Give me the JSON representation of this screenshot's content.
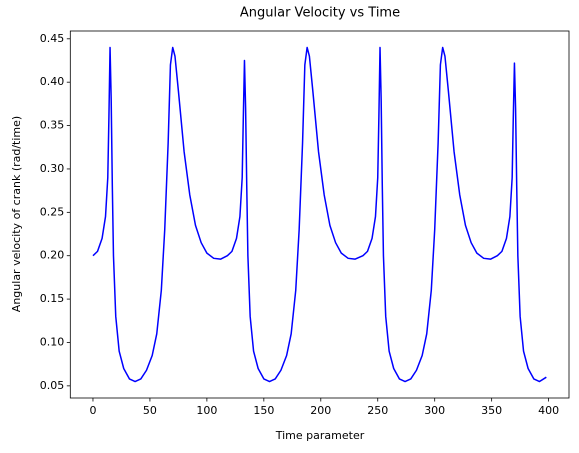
{
  "chart_data": {
    "type": "line",
    "title": "Angular Velocity vs Time",
    "x_label": "Time parameter",
    "y_label": "Angular velocity of crank (rad/time)",
    "x": [
      0,
      4,
      8,
      11,
      13,
      14,
      15,
      16,
      17,
      18,
      20,
      23,
      27,
      32,
      37,
      42,
      47,
      52,
      56,
      60,
      63,
      66,
      68,
      70,
      72,
      75,
      80,
      85,
      90,
      95,
      100,
      106,
      112,
      118,
      122,
      126,
      129,
      131,
      132,
      133,
      134,
      135,
      136,
      138,
      141,
      145,
      150,
      155,
      160,
      165,
      170,
      174,
      178,
      181,
      184,
      186,
      188,
      190,
      193,
      198,
      203,
      208,
      213,
      218,
      224,
      230,
      237,
      241,
      245,
      248,
      250,
      251,
      252,
      253,
      254,
      255,
      257,
      260,
      264,
      269,
      274,
      279,
      284,
      289,
      293,
      297,
      300,
      303,
      305,
      307,
      309,
      312,
      317,
      322,
      327,
      332,
      337,
      343,
      349,
      355,
      359,
      363,
      366,
      368,
      369,
      370,
      371,
      372,
      373,
      375,
      378,
      382,
      387,
      392,
      398
    ],
    "series": [
      {
        "name": "Angular velocity",
        "color": "#0000ff",
        "values": [
          0.2,
          0.205,
          0.22,
          0.245,
          0.29,
          0.36,
          0.44,
          0.38,
          0.28,
          0.2,
          0.13,
          0.09,
          0.07,
          0.058,
          0.055,
          0.058,
          0.068,
          0.085,
          0.11,
          0.16,
          0.23,
          0.33,
          0.42,
          0.44,
          0.43,
          0.39,
          0.32,
          0.27,
          0.235,
          0.215,
          0.203,
          0.197,
          0.196,
          0.2,
          0.205,
          0.22,
          0.245,
          0.29,
          0.36,
          0.425,
          0.37,
          0.28,
          0.2,
          0.13,
          0.09,
          0.07,
          0.058,
          0.055,
          0.058,
          0.068,
          0.085,
          0.11,
          0.16,
          0.23,
          0.33,
          0.42,
          0.44,
          0.43,
          0.39,
          0.32,
          0.27,
          0.235,
          0.215,
          0.203,
          0.197,
          0.196,
          0.2,
          0.205,
          0.22,
          0.245,
          0.29,
          0.36,
          0.44,
          0.38,
          0.28,
          0.2,
          0.13,
          0.09,
          0.07,
          0.058,
          0.055,
          0.058,
          0.068,
          0.085,
          0.11,
          0.16,
          0.23,
          0.33,
          0.42,
          0.44,
          0.43,
          0.39,
          0.32,
          0.27,
          0.235,
          0.215,
          0.203,
          0.197,
          0.196,
          0.2,
          0.205,
          0.22,
          0.245,
          0.29,
          0.36,
          0.422,
          0.37,
          0.28,
          0.2,
          0.13,
          0.09,
          0.07,
          0.058,
          0.055,
          0.06
        ]
      }
    ],
    "xlim": [
      -19.9,
      417.9
    ],
    "ylim": [
      0.036,
      0.459
    ],
    "xticks": [
      0,
      50,
      100,
      150,
      200,
      250,
      300,
      350,
      400
    ],
    "yticks": [
      0.05,
      {
        "value": 0.1,
        "label": "0.10"
      },
      0.15,
      {
        "value": 0.2,
        "label": "0.20"
      },
      0.25,
      {
        "value": 0.3,
        "label": "0.30"
      },
      0.35,
      {
        "value": 0.4,
        "label": "0.40"
      },
      0.45
    ],
    "grid": false
  }
}
